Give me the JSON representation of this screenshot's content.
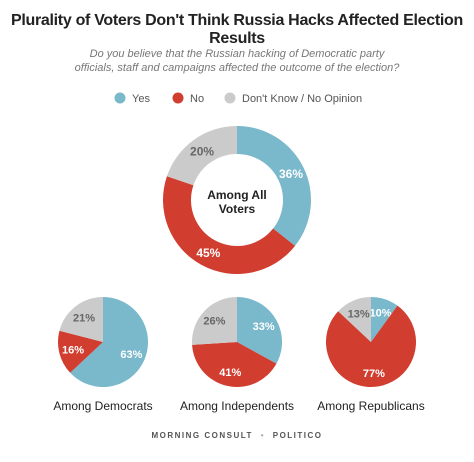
{
  "title": "Plurality of Voters Don't Think Russia Hacks Affected Election Results",
  "subtitle": "Do you believe that the Russian hacking of Democratic party officials, staff and campaigns affected the outcome of the election?",
  "legend": {
    "categories": [
      "Yes",
      "No",
      "Don't Know / No Opinion"
    ],
    "colors": [
      "#7ab8cb",
      "#d13d2f",
      "#cbcbcb"
    ]
  },
  "chart_data": [
    {
      "type": "donut",
      "label": "Among All Voters",
      "values": [
        36,
        45,
        20
      ],
      "value_labels": [
        "36%",
        "45%",
        "20%"
      ]
    },
    {
      "type": "pie",
      "label": "Among Democrats",
      "values": [
        63,
        16,
        21
      ],
      "value_labels": [
        "63%",
        "16%",
        "21%"
      ]
    },
    {
      "type": "pie",
      "label": "Among Independents",
      "values": [
        33,
        41,
        26
      ],
      "value_labels": [
        "33%",
        "41%",
        "26%"
      ]
    },
    {
      "type": "pie",
      "label": "Among Republicans",
      "values": [
        10,
        77,
        13
      ],
      "value_labels": [
        "10%",
        "77%",
        "13%"
      ]
    }
  ],
  "footer": [
    "MORNING CONSULT",
    "POLITICO"
  ]
}
